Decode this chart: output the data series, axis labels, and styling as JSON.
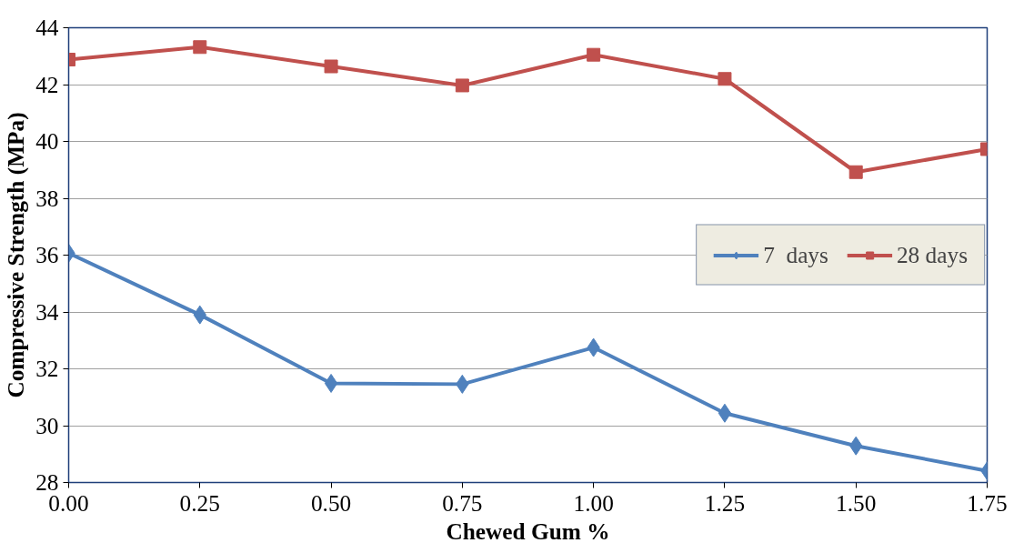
{
  "chart_data": {
    "type": "line",
    "xlabel": "Chewed Gum %",
    "ylabel": "Compressive Strength (MPa)",
    "x": [
      0.0,
      0.25,
      0.5,
      0.75,
      1.0,
      1.25,
      1.5,
      1.75
    ],
    "series": [
      {
        "name": "7  days",
        "color": "#4f81bd",
        "marker": "diamond",
        "values": [
          36.07,
          33.9,
          31.49,
          31.46,
          32.75,
          30.44,
          29.29,
          28.41
        ]
      },
      {
        "name": "28 days",
        "color": "#c0504d",
        "marker": "square",
        "values": [
          42.88,
          43.32,
          42.64,
          41.97,
          43.05,
          42.2,
          38.92,
          39.73
        ]
      }
    ],
    "xlim": [
      0.0,
      1.75
    ],
    "xticks": [
      {
        "value": 0.0,
        "label": "0.00"
      },
      {
        "value": 0.25,
        "label": "0.25"
      },
      {
        "value": 0.5,
        "label": "0.50"
      },
      {
        "value": 0.75,
        "label": "0.75"
      },
      {
        "value": 1.0,
        "label": "1.00"
      },
      {
        "value": 1.25,
        "label": "1.25"
      },
      {
        "value": 1.5,
        "label": "1.50"
      },
      {
        "value": 1.75,
        "label": "1.75"
      }
    ],
    "ylim": [
      28,
      44
    ],
    "yticks": [
      28,
      30,
      32,
      34,
      36,
      38,
      40,
      42,
      44
    ],
    "grid": "y",
    "legend": "right",
    "line_style": "solid"
  }
}
